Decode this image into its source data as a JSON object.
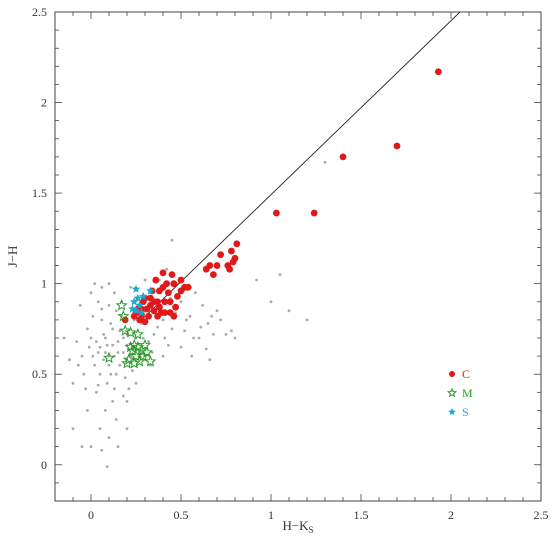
{
  "chart_data": {
    "type": "scatter",
    "title": "",
    "xlabel": "H−K",
    "xlabel_sub": "S",
    "ylabel": "J−H",
    "xlim": [
      -0.2,
      2.5
    ],
    "ylim": [
      -0.2,
      2.5
    ],
    "xticks": [
      0,
      0.5,
      1,
      1.5,
      2,
      2.5
    ],
    "xtick_labels": [
      "0",
      "0.5",
      "1",
      "1.5",
      "2",
      "2.5"
    ],
    "yticks": [
      0,
      0.5,
      1,
      1.5,
      2,
      2.5
    ],
    "ytick_labels": [
      "0",
      "0.5",
      "1",
      "1.5",
      "2",
      "2.5"
    ],
    "grid": false,
    "legend_position": "lower-right",
    "reference_line": {
      "points": [
        [
          0.28,
          0.8
        ],
        [
          2.05,
          2.5
        ]
      ],
      "color": "#222222"
    },
    "background": {
      "name": "field",
      "color": "#a9a9a9",
      "points": [
        [
          0.05,
          0.65
        ],
        [
          0.08,
          0.7
        ],
        [
          0.1,
          0.6
        ],
        [
          0.12,
          0.75
        ],
        [
          0.02,
          0.55
        ],
        [
          0.15,
          0.68
        ],
        [
          0.06,
          0.8
        ],
        [
          0.11,
          0.5
        ],
        [
          0.18,
          0.62
        ],
        [
          0.0,
          0.7
        ],
        [
          -0.05,
          0.6
        ],
        [
          0.04,
          0.9
        ],
        [
          0.14,
          0.85
        ],
        [
          0.2,
          0.72
        ],
        [
          0.09,
          0.45
        ],
        [
          -0.02,
          0.75
        ],
        [
          0.16,
          0.55
        ],
        [
          0.07,
          0.58
        ],
        [
          0.13,
          0.95
        ],
        [
          0.01,
          0.82
        ],
        [
          -0.08,
          0.68
        ],
        [
          0.22,
          0.6
        ],
        [
          0.03,
          0.4
        ],
        [
          0.12,
          0.35
        ],
        [
          0.1,
          1.0
        ],
        [
          0.17,
          0.9
        ],
        [
          0.25,
          0.7
        ],
        [
          0.19,
          0.48
        ],
        [
          -0.04,
          0.5
        ],
        [
          0.06,
          0.98
        ],
        [
          0.28,
          0.78
        ],
        [
          0.3,
          0.85
        ],
        [
          0.35,
          0.72
        ],
        [
          0.4,
          0.8
        ],
        [
          0.45,
          0.75
        ],
        [
          0.5,
          0.9
        ],
        [
          0.55,
          0.82
        ],
        [
          0.6,
          0.7
        ],
        [
          0.65,
          0.78
        ],
        [
          0.7,
          0.85
        ],
        [
          0.75,
          0.72
        ],
        [
          0.5,
          0.65
        ],
        [
          0.4,
          0.6
        ],
        [
          0.33,
          0.55
        ],
        [
          0.62,
          0.88
        ],
        [
          0.48,
          1.0
        ],
        [
          0.45,
          1.24
        ],
        [
          0.42,
          1.08
        ],
        [
          0.38,
          1.02
        ],
        [
          0.58,
          0.95
        ],
        [
          0.08,
          0.3
        ],
        [
          -0.02,
          0.3
        ],
        [
          0.14,
          0.25
        ],
        [
          0.2,
          0.35
        ],
        [
          0.05,
          0.2
        ],
        [
          -0.1,
          0.45
        ],
        [
          -0.12,
          0.58
        ],
        [
          -0.15,
          0.7
        ],
        [
          0.25,
          0.45
        ],
        [
          0.22,
          0.98
        ],
        [
          0.0,
          0.95
        ],
        [
          0.02,
          1.0
        ],
        [
          -0.06,
          0.88
        ],
        [
          0.27,
          0.62
        ],
        [
          0.32,
          0.68
        ],
        [
          0.36,
          0.9
        ],
        [
          0.44,
          0.92
        ],
        [
          0.52,
          0.74
        ],
        [
          0.56,
          0.6
        ],
        [
          0.64,
          0.64
        ],
        [
          0.68,
          0.72
        ],
        [
          0.72,
          0.8
        ],
        [
          0.78,
          0.74
        ],
        [
          0.8,
          0.7
        ],
        [
          0.66,
          0.58
        ],
        [
          0.2,
          0.2
        ],
        [
          -0.05,
          0.1
        ],
        [
          0.0,
          0.1
        ],
        [
          0.06,
          0.08
        ],
        [
          0.1,
          0.15
        ],
        [
          -0.1,
          0.2
        ],
        [
          0.15,
          0.1
        ],
        [
          0.09,
          -0.01
        ],
        [
          1.0,
          0.9
        ],
        [
          1.1,
          0.85
        ],
        [
          1.2,
          0.8
        ],
        [
          1.05,
          1.05
        ],
        [
          0.92,
          1.02
        ],
        [
          1.3,
          1.67
        ],
        [
          0.3,
          1.02
        ],
        [
          0.04,
          0.62
        ],
        [
          0.09,
          0.66
        ],
        [
          0.13,
          0.6
        ],
        [
          0.07,
          0.72
        ],
        [
          0.11,
          0.78
        ],
        [
          0.03,
          0.68
        ],
        [
          0.16,
          0.74
        ],
        [
          0.01,
          0.6
        ],
        [
          0.18,
          0.7
        ],
        [
          0.12,
          0.66
        ],
        [
          0.05,
          0.5
        ],
        [
          0.1,
          0.55
        ],
        [
          0.14,
          0.5
        ],
        [
          0.08,
          0.62
        ],
        [
          -0.01,
          0.65
        ],
        [
          0.2,
          0.66
        ],
        [
          0.17,
          0.82
        ],
        [
          0.06,
          0.86
        ],
        [
          0.1,
          0.88
        ],
        [
          0.15,
          0.62
        ],
        [
          0.24,
          0.8
        ],
        [
          0.26,
          0.88
        ],
        [
          0.29,
          0.7
        ],
        [
          0.23,
          0.52
        ],
        [
          0.21,
          0.42
        ],
        [
          0.18,
          0.38
        ],
        [
          0.13,
          0.42
        ],
        [
          0.04,
          0.44
        ],
        [
          -0.03,
          0.42
        ],
        [
          -0.07,
          0.55
        ],
        [
          0.34,
          0.62
        ],
        [
          0.37,
          0.76
        ],
        [
          0.41,
          0.7
        ],
        [
          0.47,
          0.84
        ],
        [
          0.53,
          0.8
        ],
        [
          0.57,
          0.7
        ],
        [
          0.61,
          0.76
        ],
        [
          0.67,
          0.82
        ],
        [
          0.43,
          0.66
        ],
        [
          0.39,
          0.88
        ]
      ]
    },
    "series": [
      {
        "name": "C",
        "marker": "circle",
        "color": "#e01919",
        "points": [
          [
            1.93,
            2.17
          ],
          [
            1.7,
            1.76
          ],
          [
            1.4,
            1.7
          ],
          [
            1.24,
            1.39
          ],
          [
            1.03,
            1.39
          ],
          [
            0.81,
            1.22
          ],
          [
            0.78,
            1.18
          ],
          [
            0.79,
            1.12
          ],
          [
            0.76,
            1.1
          ],
          [
            0.8,
            1.14
          ],
          [
            0.77,
            1.08
          ],
          [
            0.72,
            1.16
          ],
          [
            0.7,
            1.1
          ],
          [
            0.66,
            1.1
          ],
          [
            0.64,
            1.08
          ],
          [
            0.68,
            1.05
          ],
          [
            0.5,
            1.02
          ],
          [
            0.52,
            0.98
          ],
          [
            0.45,
            1.05
          ],
          [
            0.42,
            1.0
          ],
          [
            0.46,
            1.0
          ],
          [
            0.4,
            0.98
          ],
          [
            0.38,
            0.96
          ],
          [
            0.43,
            0.95
          ],
          [
            0.48,
            0.93
          ],
          [
            0.36,
            1.02
          ],
          [
            0.4,
            1.06
          ],
          [
            0.44,
            0.9
          ],
          [
            0.47,
            0.87
          ],
          [
            0.41,
            0.9
          ],
          [
            0.37,
            0.9
          ],
          [
            0.33,
            0.88
          ],
          [
            0.35,
            0.85
          ],
          [
            0.3,
            0.92
          ],
          [
            0.32,
            0.82
          ],
          [
            0.37,
            0.82
          ],
          [
            0.28,
            0.86
          ],
          [
            0.29,
            0.9
          ],
          [
            0.31,
            0.86
          ],
          [
            0.26,
            0.86
          ],
          [
            0.25,
            0.84
          ],
          [
            0.27,
            0.8
          ],
          [
            0.34,
            0.96
          ],
          [
            0.5,
            0.96
          ],
          [
            0.54,
            0.98
          ],
          [
            0.44,
            0.84
          ],
          [
            0.46,
            0.82
          ],
          [
            0.39,
            0.84
          ],
          [
            0.41,
            0.84
          ],
          [
            0.35,
            0.9
          ],
          [
            0.19,
            0.8
          ],
          [
            0.24,
            0.82
          ],
          [
            0.28,
            0.83
          ],
          [
            0.33,
            0.92
          ],
          [
            0.38,
            0.87
          ],
          [
            0.3,
            0.79
          ]
        ]
      },
      {
        "name": "M",
        "marker": "star-open",
        "color": "#2a9a2a",
        "points": [
          [
            0.17,
            0.88
          ],
          [
            0.18,
            0.82
          ],
          [
            0.19,
            0.74
          ],
          [
            0.22,
            0.73
          ],
          [
            0.26,
            0.72
          ],
          [
            0.24,
            0.66
          ],
          [
            0.28,
            0.63
          ],
          [
            0.25,
            0.6
          ],
          [
            0.23,
            0.63
          ],
          [
            0.3,
            0.66
          ],
          [
            0.21,
            0.58
          ],
          [
            0.33,
            0.57
          ],
          [
            0.27,
            0.57
          ],
          [
            0.2,
            0.56
          ],
          [
            0.24,
            0.56
          ],
          [
            0.1,
            0.59
          ],
          [
            0.29,
            0.6
          ],
          [
            0.31,
            0.62
          ],
          [
            0.22,
            0.65
          ],
          [
            0.26,
            0.65
          ]
        ]
      },
      {
        "name": "S",
        "marker": "star-filled",
        "color": "#1ea8d0",
        "points": [
          [
            0.25,
            0.97
          ],
          [
            0.33,
            0.96
          ],
          [
            0.26,
            0.92
          ],
          [
            0.24,
            0.9
          ],
          [
            0.27,
            0.88
          ],
          [
            0.23,
            0.86
          ],
          [
            0.25,
            0.85
          ],
          [
            0.28,
            0.84
          ],
          [
            0.29,
            0.93
          ]
        ]
      }
    ]
  }
}
